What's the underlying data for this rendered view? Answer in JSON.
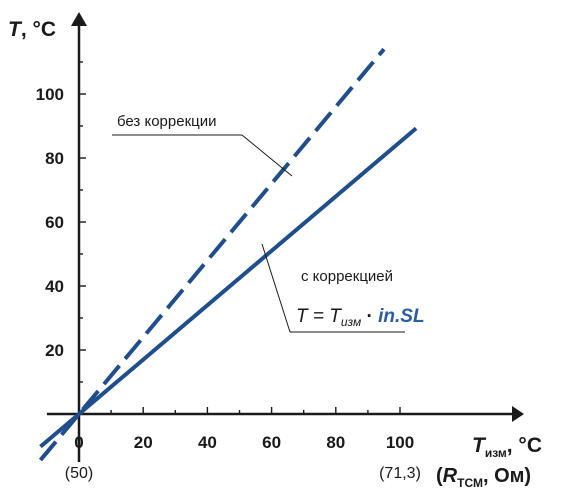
{
  "chart_data": {
    "type": "line",
    "x_range": [
      -10,
      115
    ],
    "y_range": [
      -15,
      120
    ],
    "x_ticks": [
      0,
      20,
      40,
      60,
      80,
      100
    ],
    "y_ticks": [
      20,
      40,
      60,
      80,
      100
    ],
    "x_tick_labels": [
      "0",
      "20",
      "40",
      "60",
      "80",
      "100"
    ],
    "y_tick_labels": [
      "20",
      "40",
      "60",
      "80",
      "100"
    ],
    "x_sub_labels": [
      {
        "x": 0,
        "text": "(50)"
      },
      {
        "x": 100,
        "text": "(71,3)"
      }
    ],
    "y_axis_label": {
      "var": "T",
      "unit": ", °C"
    },
    "x_axis_label": {
      "var": "T",
      "sub": "изм",
      "unit": ", °C"
    },
    "x_axis_label2": {
      "open": "(",
      "var": "R",
      "sub": "ТСМ",
      "unit": ", Ом)"
    },
    "series": [
      {
        "style": "dashed",
        "color": "#1f4e8c",
        "points": [
          [
            -12,
            -14.4
          ],
          [
            95,
            114
          ]
        ]
      },
      {
        "style": "solid",
        "color": "#1f4e8c",
        "points": [
          [
            -12,
            -10.2
          ],
          [
            105,
            89.25
          ]
        ]
      }
    ],
    "annotations": {
      "without_correction": "без коррекции",
      "with_correction": "с коррекцией",
      "formula_lhs": "T = T",
      "formula_sub": "изм",
      "formula_dot": " · ",
      "formula_param": "in.SL",
      "param_color": "#2a5ca8"
    }
  }
}
